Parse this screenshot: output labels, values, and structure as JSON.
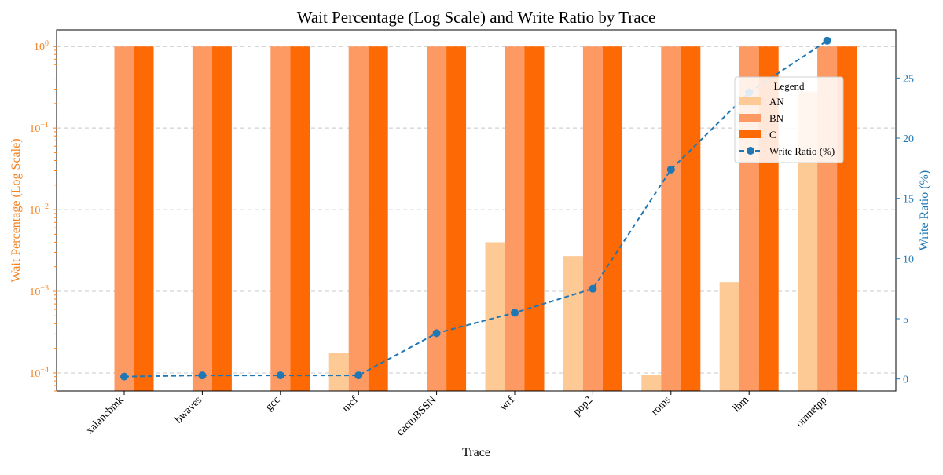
{
  "chart_data": {
    "type": "bar",
    "title": "Wait Percentage (Log Scale) and Write Ratio by Trace",
    "xlabel": "Trace",
    "ylabel_left": "Wait Percentage (Log Scale)",
    "ylabel_right": "Write Ratio (%)",
    "categories": [
      "xalancbmk",
      "bwaves",
      "gcc",
      "mcf",
      "cactuBSSN",
      "wrf",
      "pop2",
      "roms",
      "lbm",
      "omnetpp"
    ],
    "y_left_scale": "log",
    "y_left_lim": [
      6e-05,
      1.6
    ],
    "y_left_ticks": [
      {
        "value": 0.0001,
        "base": "10",
        "exp": "−4"
      },
      {
        "value": 0.001,
        "base": "10",
        "exp": "−3"
      },
      {
        "value": 0.01,
        "base": "10",
        "exp": "−2"
      },
      {
        "value": 0.1,
        "base": "10",
        "exp": "−1"
      },
      {
        "value": 1,
        "base": "10",
        "exp": "0"
      }
    ],
    "y_right_lim": [
      -1,
      29
    ],
    "y_right_ticks": [
      "0",
      "5",
      "10",
      "15",
      "20",
      "25"
    ],
    "grid": "horizontal-dashed",
    "legend": {
      "title": "Legend",
      "placement": "top-right"
    },
    "bar_series": [
      {
        "name": "AN",
        "color": "#fdc994",
        "values": [
          null,
          null,
          null,
          0.000175,
          null,
          0.004,
          0.0027,
          9.5e-05,
          0.0013,
          0.28
        ]
      },
      {
        "name": "BN",
        "color": "#fd9a64",
        "values": [
          1,
          1,
          1,
          1,
          1,
          1,
          1,
          1,
          1,
          1
        ]
      },
      {
        "name": "C",
        "color": "#fd6904",
        "values": [
          1,
          1,
          1,
          1,
          1,
          1,
          1,
          1,
          1,
          1
        ]
      }
    ],
    "line_series": {
      "name": "Write Ratio (%)",
      "color": "#1f77b4",
      "style": "dashed",
      "marker": "circle",
      "values": [
        0.2,
        0.3,
        0.3,
        0.3,
        3.8,
        5.5,
        7.5,
        17.4,
        23.8,
        28.1
      ]
    },
    "left_axis_color": "#f5821f",
    "right_axis_color": "#1f77b4"
  }
}
